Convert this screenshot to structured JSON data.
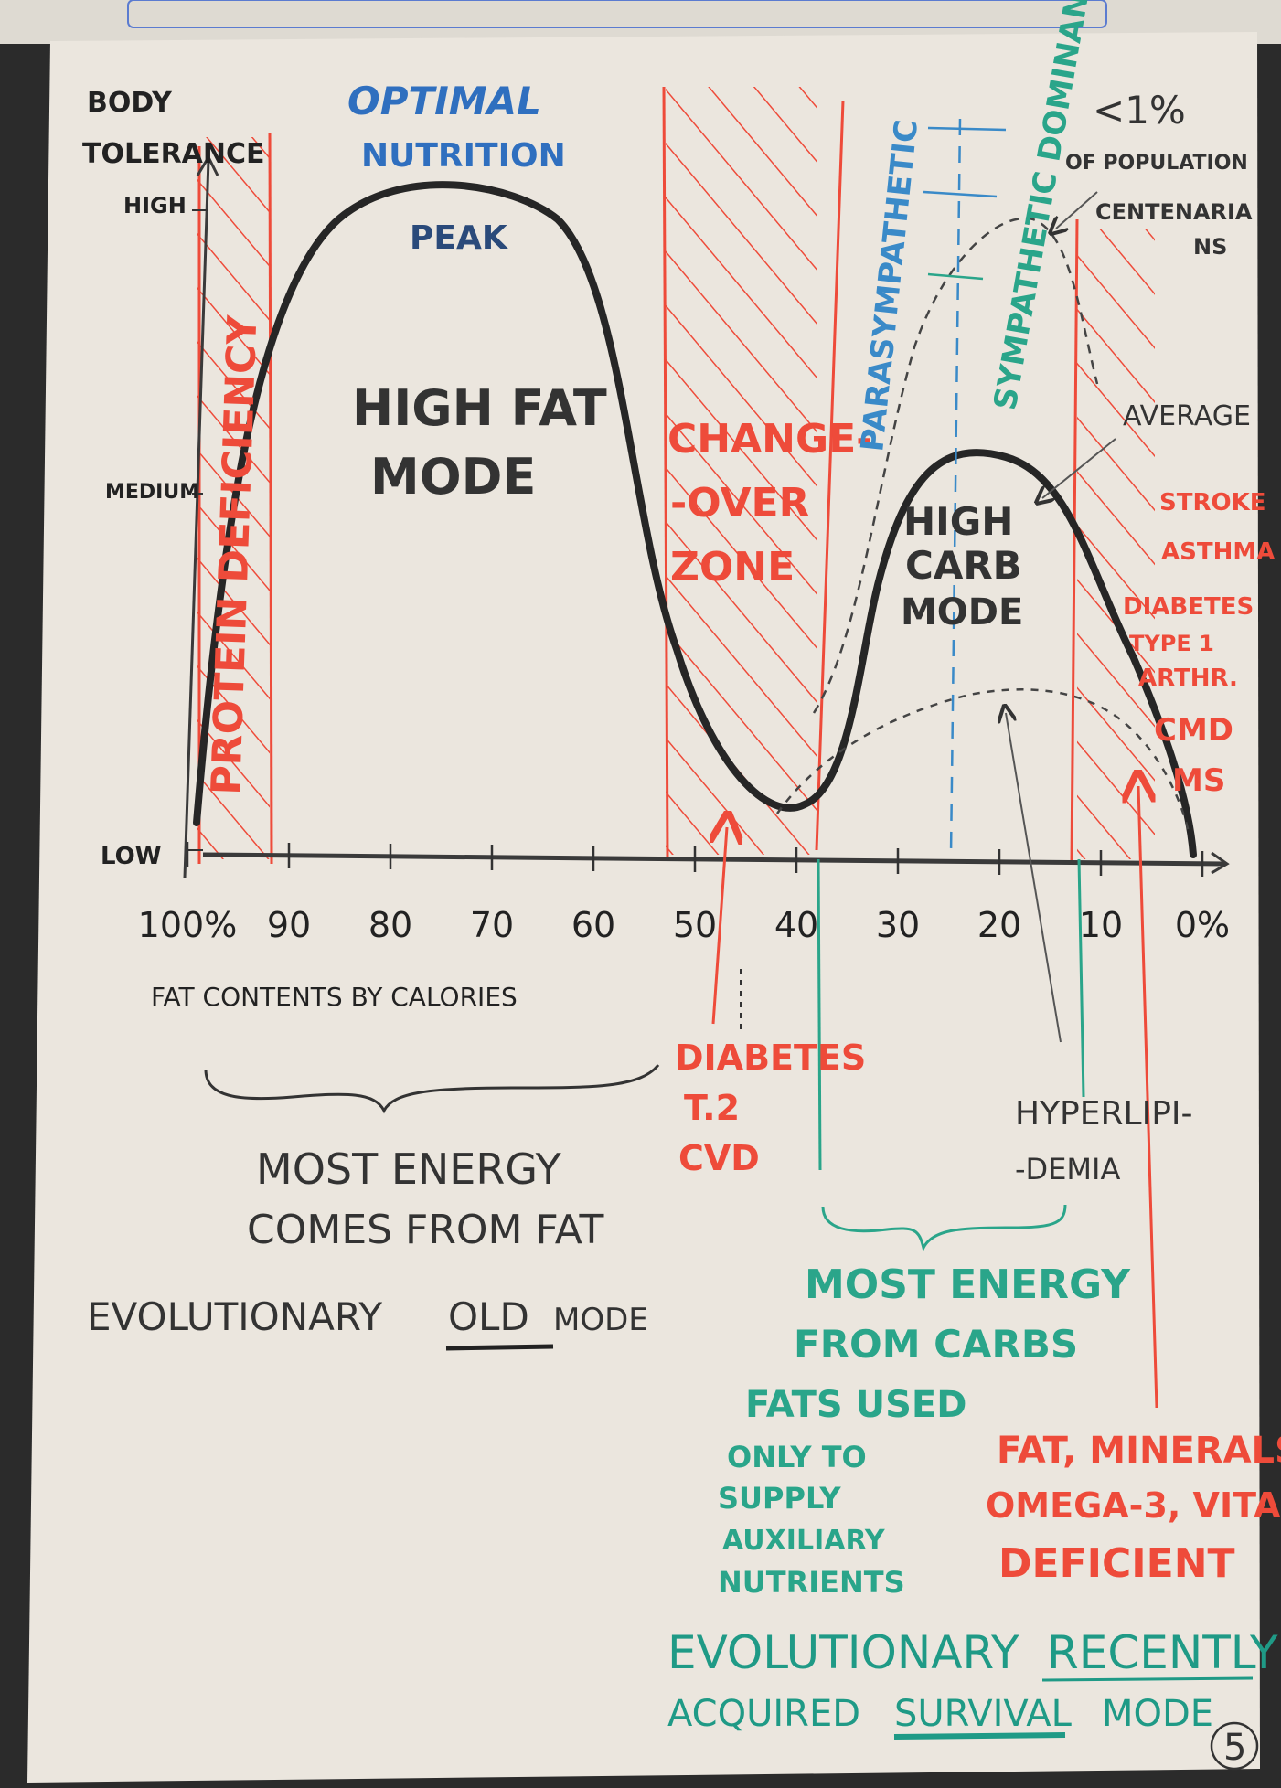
{
  "colors": {
    "paper": "#e9e4dc",
    "black": "#222222",
    "red": "#ee4b3a",
    "teal": "#2aa58a",
    "blue": "#3a8ac8"
  },
  "top_binder_text": "",
  "axis": {
    "y_title_line1": "BODY",
    "y_title_line2": "TOLERANCE",
    "y_high": "HIGH",
    "y_medium": "MEDIUM",
    "y_low": "LOW",
    "x_ticks": [
      "100%",
      "90",
      "80",
      "70",
      "60",
      "50",
      "40",
      "30",
      "20",
      "10",
      "0%"
    ],
    "x_title": "FAT CONTENTS BY CALORIES"
  },
  "labels": {
    "optimal_line1": "OPTIMAL",
    "optimal_line2": "NUTRITION",
    "peak": "PEAK",
    "protein_deficiency": "PROTEIN DEFICIENCY",
    "high_fat_line1": "HIGH FAT",
    "high_fat_line2": "MODE",
    "changeover_line1": "CHANGE-",
    "changeover_line2": "-OVER",
    "changeover_line3": "ZONE",
    "parasympathetic": "PARASYMPATHETIC",
    "sympathetic": "SYMPATHETIC DOMINANT",
    "pct_line1": "<1%",
    "pct_line2": "OF POPULATION",
    "centenarians_line1": "CENTENARIA",
    "centenarians_line2": "NS",
    "average": "AVERAGE",
    "high_carb_line1": "HIGH",
    "high_carb_line2": "CARB",
    "high_carb_line3": "MODE",
    "diseases": [
      "STROKE",
      "ASTHMA",
      "DIABETES",
      "TYPE 1",
      "ARTHR.",
      "CMD",
      "MS"
    ],
    "diabetes_t2_line1": "DIABETES",
    "diabetes_t2_line2": "T.2",
    "diabetes_t2_line3": "CVD",
    "hyperlipidemia_line1": "HYPERLIPI-",
    "hyperlipidemia_line2": "-DEMIA",
    "fat_energy_line1": "MOST ENERGY",
    "fat_energy_line2": "COMES FROM FAT",
    "evo_old_pre": "EVOLUTIONARY",
    "evo_old_word": "OLD",
    "evo_old_post": "MODE",
    "carb_energy_line1": "MOST ENERGY",
    "carb_energy_line2": "FROM CARBS",
    "fats_used_line1": "FATS USED",
    "fats_used_line2": "ONLY TO",
    "fats_used_line3": "SUPPLY",
    "fats_used_line4": "AUXILIARY",
    "fats_used_line5": "NUTRIENTS",
    "deficient_line1": "FAT, MINERALS",
    "deficient_line2": "OMEGA-3, VITA.",
    "deficient_line3": "DEFICIENT",
    "evo_recent_pre": "EVOLUTIONARY",
    "evo_recent_word": "RECENTLY",
    "evo_survival_pre": "ACQUIRED",
    "evo_survival_word": "SURVIVAL",
    "evo_survival_post": "MODE",
    "page_number": "5"
  }
}
